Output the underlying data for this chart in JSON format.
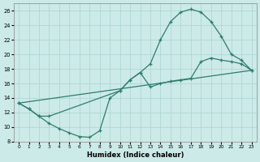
{
  "xlabel": "Humidex (Indice chaleur)",
  "background_color": "#cceae7",
  "grid_color": "#b0d8d4",
  "line_color": "#2e7d6e",
  "xlim": [
    -0.5,
    23.5
  ],
  "ylim": [
    8,
    27
  ],
  "xticks": [
    0,
    1,
    2,
    3,
    4,
    5,
    6,
    7,
    8,
    9,
    10,
    11,
    12,
    13,
    14,
    15,
    16,
    17,
    18,
    19,
    20,
    21,
    22,
    23
  ],
  "yticks": [
    8,
    10,
    12,
    14,
    16,
    18,
    20,
    22,
    24,
    26
  ],
  "line1_x": [
    0,
    1,
    2,
    3,
    10,
    11,
    12,
    13,
    14,
    15,
    16,
    17,
    18,
    19,
    20,
    21,
    22,
    23
  ],
  "line1_y": [
    13.3,
    12.5,
    11.5,
    11.5,
    15.0,
    16.5,
    17.5,
    18.7,
    22.0,
    24.5,
    25.8,
    26.2,
    25.8,
    24.5,
    22.5,
    20.0,
    19.2,
    17.8
  ],
  "line2_x": [
    0,
    23
  ],
  "line2_y": [
    13.3,
    17.8
  ],
  "line3_x": [
    0,
    1,
    2,
    3,
    4,
    5,
    6,
    7,
    8,
    9,
    10,
    11,
    12,
    13,
    14,
    15,
    16,
    17,
    18,
    19,
    20,
    21,
    22,
    23
  ],
  "line3_y": [
    13.3,
    12.5,
    11.5,
    10.5,
    9.8,
    9.2,
    8.7,
    8.6,
    9.5,
    14.0,
    15.0,
    16.5,
    17.5,
    15.5,
    16.0,
    16.3,
    16.5,
    16.7,
    19.0,
    19.5,
    19.2,
    19.0,
    18.7,
    17.8
  ]
}
